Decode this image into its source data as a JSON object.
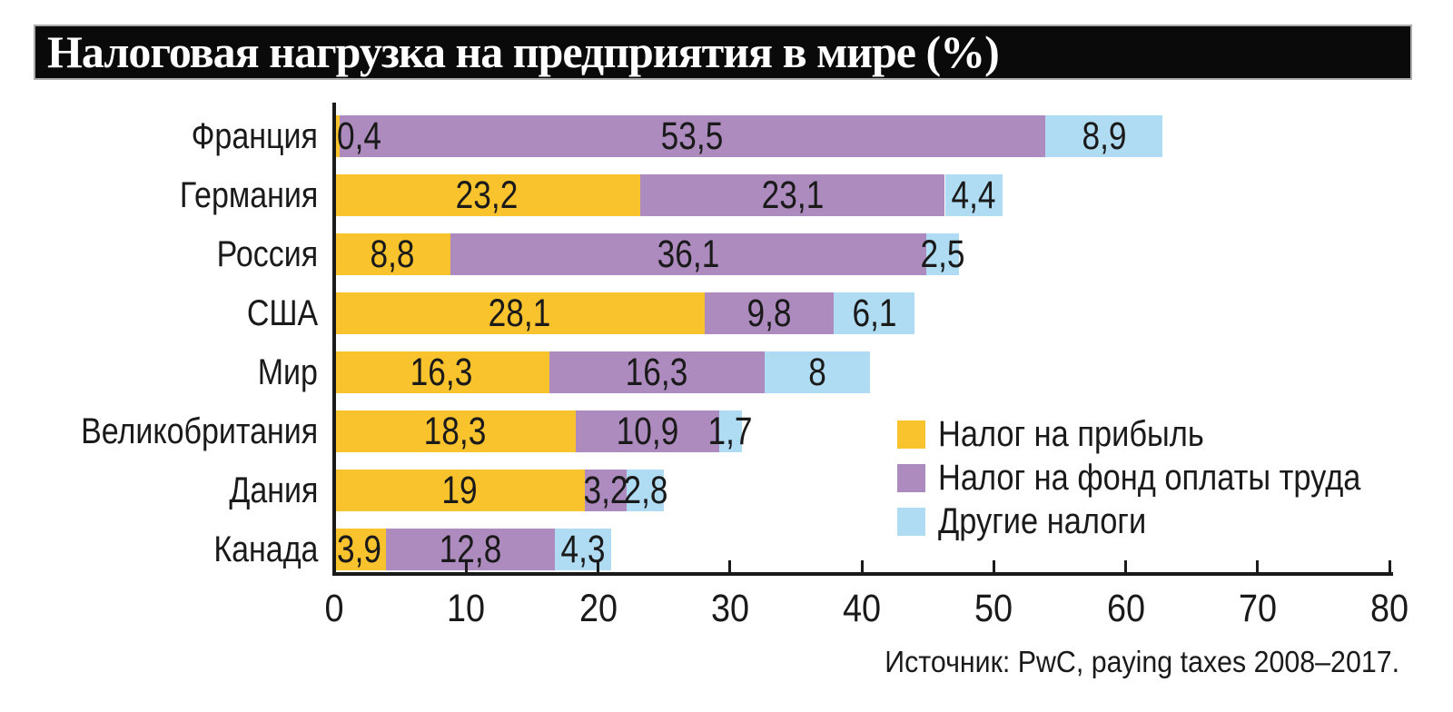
{
  "title": {
    "text": "Налоговая нагрузка на предприятия в мире (%)"
  },
  "chart_data": {
    "type": "bar",
    "orientation": "horizontal-stacked",
    "title": "Налоговая нагрузка на предприятия в мире (%)",
    "categories": [
      "Франция",
      "Германия",
      "Россия",
      "США",
      "Мир",
      "Великобритания",
      "Дания",
      "Канада"
    ],
    "series": [
      {
        "name": "Налог на прибыль",
        "color": "#F9C32E",
        "values": [
          0.4,
          23.2,
          8.8,
          28.1,
          16.3,
          18.3,
          19,
          3.9
        ]
      },
      {
        "name": "Налог на фонд оплаты труда",
        "color": "#AE8BBE",
        "values": [
          53.5,
          23.1,
          36.1,
          9.8,
          16.3,
          10.9,
          3.2,
          12.8
        ]
      },
      {
        "name": "Другие налоги",
        "color": "#AFDCF2",
        "values": [
          8.9,
          4.4,
          2.5,
          6.1,
          8,
          1.7,
          2.8,
          4.3
        ]
      }
    ],
    "xlabel": "",
    "ylabel": "",
    "xlim": [
      0,
      80
    ],
    "xticks": [
      0,
      10,
      20,
      30,
      40,
      50,
      60,
      70,
      80
    ],
    "grid": false,
    "legend_position": "inside-right",
    "decimal_separator": ","
  },
  "source": {
    "text": "Источник: PwC, paying taxes 2008–2017."
  },
  "colors": {
    "banner_bg": "#0a0a0a",
    "banner_text": "#ffffff",
    "axis": "#1a1a1a",
    "text": "#1a1a1a"
  }
}
